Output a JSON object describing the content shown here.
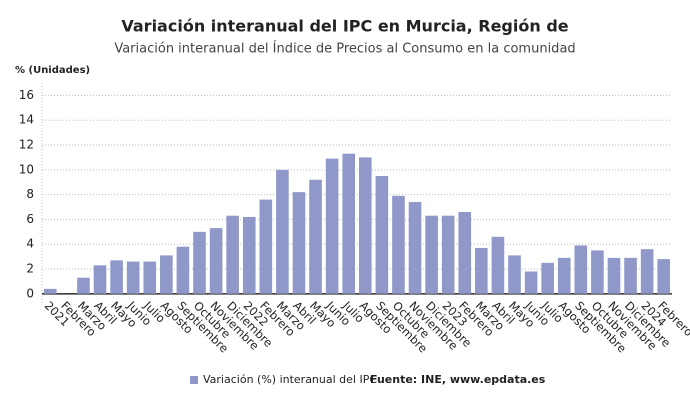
{
  "chart_data": {
    "type": "bar",
    "title": "Variación interanual del IPC en Murcia, Región de",
    "subtitle": "Variación interanual del Índice de Precios al Consumo en la comunidad",
    "y_label": "% (Unidades)",
    "source": "Fuente: INE, www.epdata.es",
    "categories": [
      "2021",
      "Febrero",
      "Marzo",
      "Abril",
      "Mayo",
      "Junio",
      "Julio",
      "Agosto",
      "Septiembre",
      "Octubre",
      "Noviembre",
      "Diciembre",
      "2022",
      "Febrero",
      "Marzo",
      "Abril",
      "Mayo",
      "Junio",
      "Julio",
      "Agosto",
      "Septiembre",
      "Octubre",
      "Noviembre",
      "Diciembre",
      "2023",
      "Febrero",
      "Marzo",
      "Abril",
      "Mayo",
      "Junio",
      "Julio",
      "Agosto",
      "Septiembre",
      "Octubre",
      "Noviembre",
      "Diciembre",
      "2024",
      "Febrero"
    ],
    "series": [
      {
        "name": "Variación (%) interanual del IPC",
        "color": "#8f98c8",
        "values": [
          0.4,
          0,
          1.3,
          2.3,
          2.7,
          2.6,
          2.6,
          3.1,
          3.8,
          5.0,
          5.3,
          6.3,
          6.2,
          7.6,
          10.0,
          8.2,
          9.2,
          10.9,
          11.3,
          11.0,
          9.5,
          7.9,
          7.4,
          6.3,
          6.3,
          6.6,
          3.7,
          4.6,
          3.1,
          1.8,
          2.5,
          2.9,
          3.9,
          3.5,
          2.9,
          2.9,
          3.6,
          2.8
        ]
      }
    ],
    "ylim": [
      -0.9,
      17
    ],
    "yticks": [
      0,
      2,
      4,
      6,
      8,
      10,
      12,
      14,
      16
    ],
    "grid": true
  }
}
